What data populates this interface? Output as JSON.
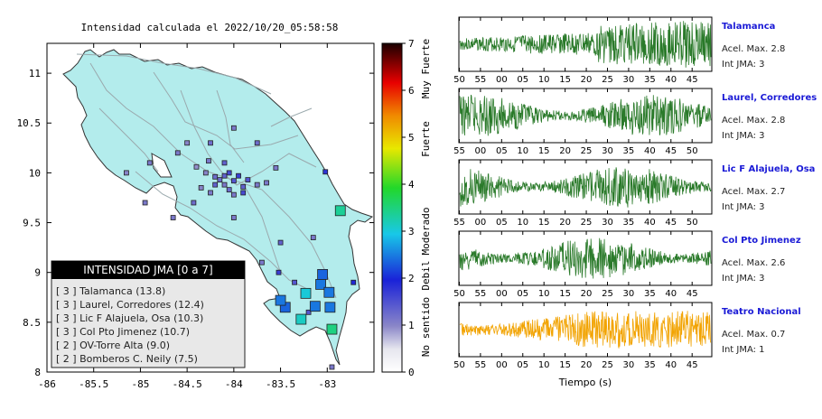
{
  "title": "Intensidad calculada el 2022/10/20_05:58:58",
  "map": {
    "lon_ticks": [
      "-86",
      "-85.5",
      "-85",
      "-84.5",
      "-84",
      "-83.5",
      "-83"
    ],
    "lat_ticks": [
      "11",
      "10.5",
      "10",
      "9.5",
      "9",
      "8.5",
      "8"
    ],
    "colors": {
      "land": "#b3ecec",
      "coast": "#333333",
      "roads": "#9aa9ad",
      "border": "#9aa9ad"
    }
  },
  "legend": {
    "header": "INTENSIDAD JMA [0 a 7]",
    "items": [
      "[ 3 ]  Talamanca (13.8)",
      "[ 3 ]  Laurel, Corredores (12.4)",
      "[ 3 ]  Lic F Alajuela, Osa (10.3)",
      "[ 3 ]  Col Pto Jimenez (10.7)",
      "[ 2 ]  OV-Torre Alta (9.0)",
      "[ 2 ]  Bomberos C. Neily (7.5)"
    ]
  },
  "colorbar": {
    "ticks": [
      "0",
      "1",
      "2",
      "3",
      "4",
      "5",
      "6",
      "7"
    ],
    "labels": [
      "No sentido",
      "Debil",
      "Moderado",
      "Fuerte",
      "Muy Fuerte"
    ]
  },
  "waveforms": {
    "xlabel": "Tiempo (s)",
    "traces": [
      {
        "name": "Talamanca",
        "accel": "Acel. Max. 2.8",
        "jma": "Int JMA: 3",
        "color": "#2a7a2a",
        "ticks": [
          "50",
          "55",
          "00",
          "05",
          "10",
          "15",
          "20",
          "25",
          "30",
          "35",
          "40",
          "45"
        ],
        "tick_start": 50
      },
      {
        "name": "Laurel, Corredores",
        "accel": "Acel. Max. 2.8",
        "jma": "Int JMA: 3",
        "color": "#2a7a2a",
        "ticks": [
          "55",
          "00",
          "05",
          "10",
          "15",
          "20",
          "25",
          "30",
          "35",
          "40",
          "45",
          "50"
        ],
        "tick_start": 55
      },
      {
        "name": "Lic F Alajuela, Osa",
        "accel": "Acel. Max. 2.7",
        "jma": "Int JMA: 3",
        "color": "#2a7a2a",
        "ticks": [
          "55",
          "00",
          "05",
          "10",
          "15",
          "20",
          "25",
          "30",
          "35",
          "40",
          "45",
          "50"
        ],
        "tick_start": 55
      },
      {
        "name": "Col Pto Jimenez",
        "accel": "Acel. Max. 2.6",
        "jma": "Int JMA: 3",
        "color": "#2a7a2a",
        "ticks": [
          "50",
          "55",
          "00",
          "05",
          "10",
          "15",
          "20",
          "25",
          "30",
          "35",
          "40",
          "45"
        ],
        "tick_start": 50
      },
      {
        "name": "Teatro Nacional",
        "accel": "Acel. Max. 0.7",
        "jma": "Int JMA: 1",
        "color": "#f2a300",
        "ticks": [
          "50",
          "55",
          "00",
          "05",
          "10",
          "15",
          "20",
          "25",
          "30",
          "35",
          "40",
          "45"
        ],
        "tick_start": 50
      }
    ]
  },
  "chart_data": {
    "type": "scatter",
    "x_range": [
      -86,
      -82.5
    ],
    "y_range": [
      8,
      11.3
    ],
    "xticks": [
      -86,
      -85.5,
      -85,
      -84.5,
      -84,
      -83.5,
      -83
    ],
    "yticks": [
      8,
      8.5,
      9,
      9.5,
      10,
      10.5,
      11
    ],
    "colorscale": [
      "#ffffff",
      "#8a86c8",
      "#1a22d8",
      "#18c8e8",
      "#22d82a",
      "#e8e800",
      "#f08a00",
      "#e80000",
      "#000000"
    ],
    "stations": [
      {
        "lon": -83.05,
        "lat": 8.98,
        "intensity": 2.1
      },
      {
        "lon": -83.07,
        "lat": 8.88,
        "intensity": 2.2
      },
      {
        "lon": -83.23,
        "lat": 8.79,
        "intensity": 2.7
      },
      {
        "lon": -83.5,
        "lat": 8.72,
        "intensity": 2.2
      },
      {
        "lon": -83.45,
        "lat": 8.65,
        "intensity": 2.1
      },
      {
        "lon": -83.13,
        "lat": 8.66,
        "intensity": 2.2
      },
      {
        "lon": -82.98,
        "lat": 8.8,
        "intensity": 2.2
      },
      {
        "lon": -82.97,
        "lat": 8.65,
        "intensity": 2.2
      },
      {
        "lon": -83.28,
        "lat": 8.53,
        "intensity": 2.8
      },
      {
        "lon": -82.95,
        "lat": 8.43,
        "intensity": 3.1
      },
      {
        "lon": -82.86,
        "lat": 9.62,
        "intensity": 3.0
      },
      {
        "lon": -83.02,
        "lat": 10.01,
        "intensity": 1.6
      },
      {
        "lon": -83.52,
        "lat": 9.0,
        "intensity": 1.5
      },
      {
        "lon": -82.72,
        "lat": 8.9,
        "intensity": 1.7
      },
      {
        "lon": -83.35,
        "lat": 8.9,
        "intensity": 1.3
      },
      {
        "lon": -83.7,
        "lat": 9.1,
        "intensity": 1.0
      },
      {
        "lon": -83.15,
        "lat": 9.35,
        "intensity": 1.0
      },
      {
        "lon": -83.55,
        "lat": 10.05,
        "intensity": 1.0
      },
      {
        "lon": -83.5,
        "lat": 9.3,
        "intensity": 1.2
      },
      {
        "lon": -84.0,
        "lat": 9.55,
        "intensity": 1.0
      },
      {
        "lon": -84.43,
        "lat": 9.7,
        "intensity": 1.1
      },
      {
        "lon": -84.65,
        "lat": 9.55,
        "intensity": 1.0
      },
      {
        "lon": -84.9,
        "lat": 10.1,
        "intensity": 1.0
      },
      {
        "lon": -85.15,
        "lat": 10.0,
        "intensity": 0.9
      },
      {
        "lon": -84.95,
        "lat": 9.7,
        "intensity": 1.0
      },
      {
        "lon": -84.0,
        "lat": 10.45,
        "intensity": 1.0
      },
      {
        "lon": -84.25,
        "lat": 10.3,
        "intensity": 1.1
      },
      {
        "lon": -84.5,
        "lat": 10.3,
        "intensity": 0.9
      },
      {
        "lon": -84.6,
        "lat": 10.2,
        "intensity": 1.0
      },
      {
        "lon": -83.75,
        "lat": 10.3,
        "intensity": 1.1
      },
      {
        "lon": -84.27,
        "lat": 10.12,
        "intensity": 1.0
      },
      {
        "lon": -84.1,
        "lat": 10.1,
        "intensity": 1.2
      },
      {
        "lon": -84.05,
        "lat": 10.0,
        "intensity": 1.4
      },
      {
        "lon": -84.2,
        "lat": 9.96,
        "intensity": 1.1
      },
      {
        "lon": -84.3,
        "lat": 10.0,
        "intensity": 0.9
      },
      {
        "lon": -83.95,
        "lat": 9.97,
        "intensity": 1.5
      },
      {
        "lon": -84.0,
        "lat": 9.92,
        "intensity": 1.3
      },
      {
        "lon": -84.1,
        "lat": 9.88,
        "intensity": 1.0
      },
      {
        "lon": -83.9,
        "lat": 9.86,
        "intensity": 1.2
      },
      {
        "lon": -83.85,
        "lat": 9.93,
        "intensity": 1.3
      },
      {
        "lon": -84.15,
        "lat": 9.93,
        "intensity": 1.1
      },
      {
        "lon": -84.4,
        "lat": 10.06,
        "intensity": 0.8
      },
      {
        "lon": -83.75,
        "lat": 9.88,
        "intensity": 1.0
      },
      {
        "lon": -83.65,
        "lat": 9.9,
        "intensity": 1.0
      },
      {
        "lon": -84.2,
        "lat": 9.88,
        "intensity": 1.2
      },
      {
        "lon": -84.05,
        "lat": 9.83,
        "intensity": 1.1
      },
      {
        "lon": -84.25,
        "lat": 9.8,
        "intensity": 1.0
      },
      {
        "lon": -84.0,
        "lat": 9.78,
        "intensity": 1.0
      },
      {
        "lon": -83.9,
        "lat": 9.8,
        "intensity": 1.4
      },
      {
        "lon": -84.35,
        "lat": 9.85,
        "intensity": 0.9
      },
      {
        "lon": -84.1,
        "lat": 9.97,
        "intensity": 1.2
      },
      {
        "lon": -83.2,
        "lat": 8.6,
        "intensity": 1.3
      },
      {
        "lon": -82.95,
        "lat": 8.05,
        "intensity": 1.0
      }
    ]
  }
}
